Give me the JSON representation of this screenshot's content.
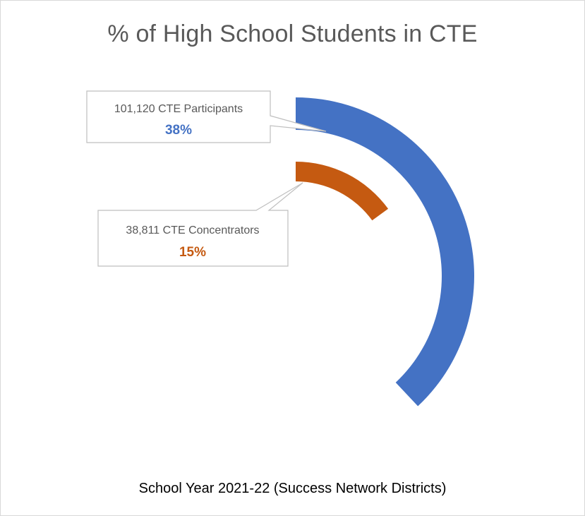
{
  "chart_data": {
    "type": "pie",
    "subtype": "radial-bar",
    "title": "% of High School Students in CTE",
    "subtitle": "School Year 2021-22 (Success Network Districts)",
    "series": [
      {
        "name": "CTE Participants",
        "count_label": "101,120 CTE Participants",
        "value": 38,
        "value_label": "38%",
        "color": "#4472c4"
      },
      {
        "name": "CTE Concentrators",
        "count_label": "38,811 CTE Concentrators",
        "value": 15,
        "value_label": "15%",
        "color": "#c55a11"
      }
    ],
    "max_value": 100,
    "legend": "none"
  }
}
